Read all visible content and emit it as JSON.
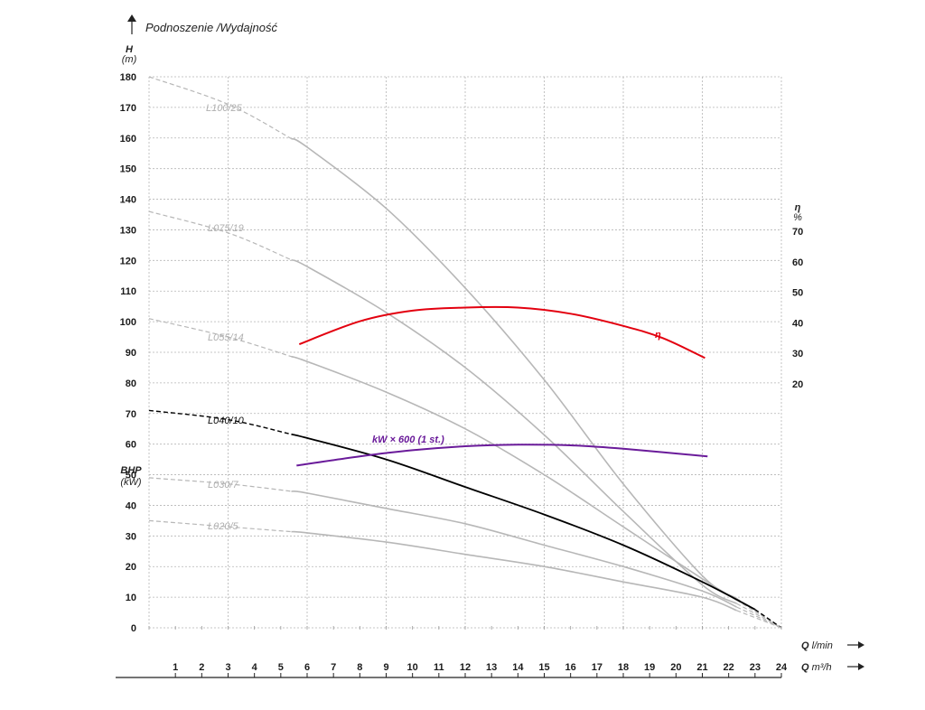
{
  "chart_data": {
    "type": "line",
    "title": "Podnoszenie /Wydajność",
    "y_left": {
      "label": "H",
      "unit": "(m)",
      "ticks": [
        0,
        10,
        20,
        30,
        40,
        50,
        60,
        70,
        80,
        90,
        100,
        110,
        120,
        130,
        140,
        150,
        160,
        170,
        180
      ],
      "lim": [
        0,
        180
      ]
    },
    "y_power": {
      "label": "BHP",
      "unit": "(kW)"
    },
    "y_right": {
      "label": "η",
      "unit": "%",
      "ticks": [
        20,
        30,
        40,
        50,
        60,
        70
      ]
    },
    "x_primary": {
      "label": "Q",
      "unit": "l/min"
    },
    "x_secondary": {
      "label": "Q",
      "unit": "m³/h",
      "ticks": [
        1,
        2,
        3,
        4,
        5,
        6,
        7,
        8,
        9,
        10,
        11,
        12,
        13,
        14,
        15,
        16,
        17,
        18,
        19,
        20,
        21,
        22,
        23,
        24
      ],
      "lim": [
        0,
        24
      ]
    },
    "grid": true,
    "pump_curves": [
      {
        "name": "L100/25",
        "points": [
          [
            0,
            180
          ],
          [
            3,
            171
          ],
          [
            6,
            157
          ],
          [
            9,
            137
          ],
          [
            12,
            111
          ],
          [
            15,
            81
          ],
          [
            18,
            47
          ],
          [
            21,
            17
          ],
          [
            24,
            0
          ]
        ]
      },
      {
        "name": "L075/19",
        "points": [
          [
            0,
            136
          ],
          [
            3,
            129
          ],
          [
            6,
            118
          ],
          [
            9,
            103
          ],
          [
            12,
            85
          ],
          [
            15,
            63
          ],
          [
            18,
            38
          ],
          [
            21,
            14
          ],
          [
            24,
            0
          ]
        ]
      },
      {
        "name": "L055/14",
        "points": [
          [
            0,
            101
          ],
          [
            3,
            95
          ],
          [
            6,
            87
          ],
          [
            9,
            77
          ],
          [
            12,
            65
          ],
          [
            15,
            50
          ],
          [
            18,
            33
          ],
          [
            21,
            16
          ],
          [
            24,
            0
          ]
        ]
      },
      {
        "name": "L040/10",
        "points": [
          [
            0,
            71
          ],
          [
            3,
            68
          ],
          [
            6,
            62
          ],
          [
            9,
            55
          ],
          [
            12,
            46
          ],
          [
            15,
            37
          ],
          [
            18,
            27
          ],
          [
            21,
            15
          ],
          [
            23,
            6
          ],
          [
            24,
            0
          ]
        ]
      },
      {
        "name": "L030/7",
        "points": [
          [
            0,
            49
          ],
          [
            3,
            47
          ],
          [
            6,
            44
          ],
          [
            9,
            39
          ],
          [
            12,
            34
          ],
          [
            15,
            27
          ],
          [
            18,
            20
          ],
          [
            21,
            12
          ],
          [
            24,
            0
          ]
        ]
      },
      {
        "name": "L020/5",
        "points": [
          [
            0,
            35
          ],
          [
            3,
            33
          ],
          [
            6,
            31
          ],
          [
            9,
            28
          ],
          [
            12,
            24
          ],
          [
            15,
            20
          ],
          [
            18,
            15
          ],
          [
            21,
            10
          ],
          [
            24,
            0
          ]
        ]
      }
    ],
    "efficiency": {
      "name": "η",
      "points": [
        [
          5.7,
          33
        ],
        [
          8,
          40.5
        ],
        [
          10,
          44
        ],
        [
          12,
          45
        ],
        [
          14,
          45
        ],
        [
          16,
          43
        ],
        [
          18,
          39
        ],
        [
          19.5,
          35
        ],
        [
          21.1,
          28.5
        ]
      ]
    },
    "power": {
      "name": "kW × 600 (1 st.)",
      "points": [
        [
          5.6,
          53
        ],
        [
          8,
          56
        ],
        [
          10,
          58
        ],
        [
          12,
          59.3
        ],
        [
          14,
          59.8
        ],
        [
          16,
          59.6
        ],
        [
          18,
          58.5
        ],
        [
          21.2,
          56
        ]
      ]
    }
  }
}
